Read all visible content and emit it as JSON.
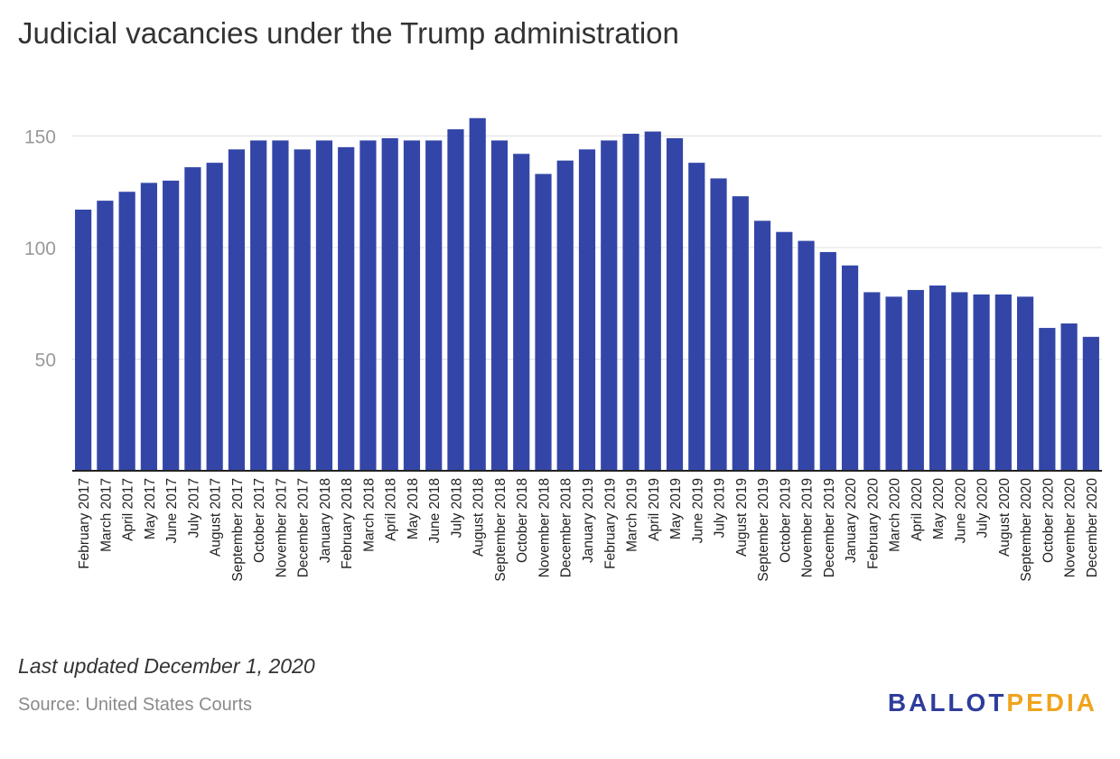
{
  "colors": {
    "bar": "#3346a8",
    "grid": "#e0e0e0",
    "axis": "#222222",
    "tick_label": "#999999",
    "logo_primary": "#2e3d9b",
    "logo_accent": "#f0a31c"
  },
  "footer": {
    "note": "Last updated December 1, 2020",
    "source": "Source: United States Courts",
    "logo_part1": "BALLOT",
    "logo_part2": "PEDIA"
  },
  "chart_data": {
    "type": "bar",
    "title": "Judicial vacancies under the Trump administration",
    "xlabel": "",
    "ylabel": "",
    "ylim": [
      0,
      160
    ],
    "yticks": [
      50,
      100,
      150
    ],
    "grid": true,
    "legend": "none",
    "categories": [
      "February 2017",
      "March 2017",
      "April 2017",
      "May 2017",
      "June 2017",
      "July 2017",
      "August 2017",
      "September 2017",
      "October 2017",
      "November 2017",
      "December 2017",
      "January 2018",
      "February 2018",
      "March 2018",
      "April 2018",
      "May 2018",
      "June 2018",
      "July 2018",
      "August 2018",
      "September 2018",
      "October 2018",
      "November 2018",
      "December 2018",
      "January 2019",
      "February 2019",
      "March 2019",
      "April 2019",
      "May 2019",
      "June 2019",
      "July 2019",
      "August 2019",
      "September 2019",
      "October 2019",
      "November 2019",
      "December 2019",
      "January 2020",
      "February 2020",
      "March 2020",
      "April 2020",
      "May 2020",
      "June 2020",
      "July 2020",
      "August 2020",
      "September 2020",
      "October 2020",
      "November 2020",
      "December 2020"
    ],
    "values": [
      117,
      121,
      125,
      129,
      130,
      136,
      138,
      144,
      148,
      148,
      144,
      148,
      145,
      148,
      149,
      148,
      148,
      153,
      158,
      148,
      142,
      133,
      139,
      144,
      148,
      151,
      152,
      149,
      138,
      131,
      123,
      112,
      107,
      103,
      98,
      92,
      80,
      78,
      81,
      83,
      80,
      79,
      79,
      78,
      64,
      66,
      60
    ]
  }
}
